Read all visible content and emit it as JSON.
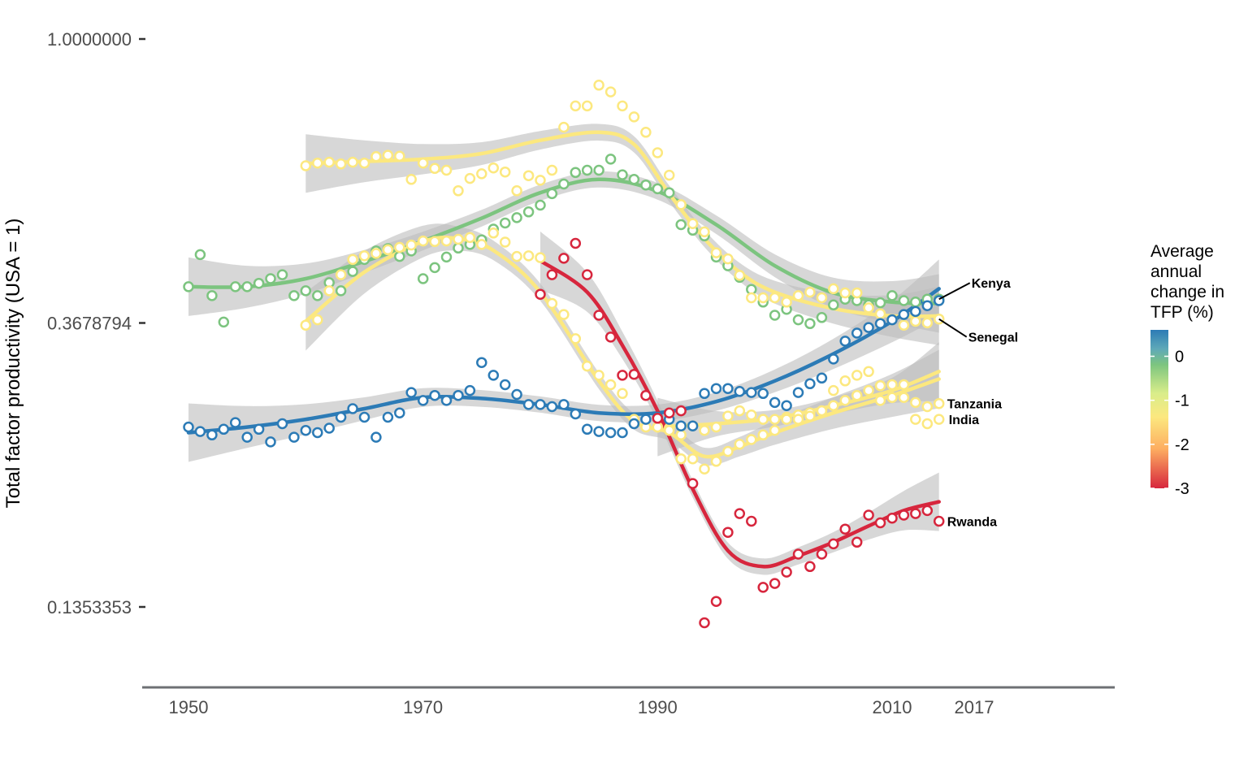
{
  "chart_data": {
    "type": "scatter",
    "title": "",
    "xlabel": "",
    "ylabel": "Total factor productivity (USA = 1)",
    "x_ticks": [
      "1950",
      "1970",
      "1990",
      "2010",
      "2017"
    ],
    "x_tick_values": [
      1950,
      1970,
      1990,
      2010,
      2017
    ],
    "y_ticks": [
      "1.0000000",
      "0.3678794",
      "0.1353353"
    ],
    "y_tick_values": [
      1.0,
      0.3678794,
      0.1353353
    ],
    "y_scale": "log",
    "xlim": [
      1946,
      2028
    ],
    "ylim": [
      0.1076,
      1.0
    ],
    "grid": false,
    "legend": {
      "title": [
        "Average",
        "annual",
        "change in",
        "TFP (%)"
      ],
      "placement": "right",
      "ticks": [
        "0",
        "-1",
        "-2",
        "-3"
      ],
      "tick_values": [
        0,
        -1,
        -2,
        -3
      ],
      "range": [
        0.6,
        -3.0
      ],
      "colors": [
        "#2c7bb6",
        "#abd9e9",
        "#7dc57f",
        "#ffffbf",
        "#fee090",
        "#fdae61",
        "#d7191c"
      ]
    },
    "series": [
      {
        "name": "Kenya",
        "color": "#7cc47f",
        "x": [
          1950,
          1951,
          1952,
          1953,
          1954,
          1955,
          1956,
          1957,
          1958,
          1959,
          1960,
          1961,
          1962,
          1963,
          1964,
          1965,
          1966,
          1967,
          1968,
          1969,
          1970,
          1971,
          1972,
          1973,
          1974,
          1975,
          1976,
          1977,
          1978,
          1979,
          1980,
          1981,
          1982,
          1983,
          1984,
          1985,
          1986,
          1987,
          1988,
          1989,
          1990,
          1991,
          1992,
          1993,
          1994,
          1995,
          1996,
          1997,
          1998,
          1999,
          2000,
          2001,
          2002,
          2003,
          2004,
          2005,
          2006,
          2007,
          2008,
          2009,
          2010,
          2011,
          2012,
          2013,
          2014
        ],
        "y": [
          0.418,
          0.468,
          0.405,
          0.369,
          0.418,
          0.418,
          0.423,
          0.43,
          0.436,
          0.405,
          0.412,
          0.405,
          0.424,
          0.412,
          0.441,
          0.46,
          0.474,
          0.478,
          0.465,
          0.474,
          0.43,
          0.447,
          0.464,
          0.479,
          0.485,
          0.493,
          0.512,
          0.523,
          0.533,
          0.544,
          0.557,
          0.58,
          0.6,
          0.625,
          0.63,
          0.63,
          0.655,
          0.62,
          0.61,
          0.598,
          0.59,
          0.582,
          0.52,
          0.51,
          0.5,
          0.464,
          0.45,
          0.432,
          0.414,
          0.396,
          0.378,
          0.386,
          0.372,
          0.367,
          0.375,
          0.392,
          0.4,
          0.398,
          0.392,
          0.395,
          0.405,
          0.398,
          0.396,
          0.4,
          0.4
        ],
        "trend_x": [
          1950,
          1955,
          1960,
          1965,
          1970,
          1975,
          1980,
          1985,
          1990,
          1995,
          2000,
          2005,
          2010,
          2014
        ],
        "trend_y": [
          0.418,
          0.418,
          0.43,
          0.457,
          0.491,
          0.532,
          0.582,
          0.61,
          0.585,
          0.52,
          0.45,
          0.409,
          0.396,
          0.394
        ]
      },
      {
        "name": "India",
        "color": "#fce87f",
        "x": [
          1960,
          1961,
          1962,
          1963,
          1964,
          1965,
          1966,
          1967,
          1968,
          1969,
          1970,
          1971,
          1972,
          1973,
          1974,
          1975,
          1976,
          1977,
          1978,
          1979,
          1980,
          1981,
          1982,
          1983,
          1984,
          1985,
          1986,
          1987,
          1988,
          1989,
          1990,
          1991,
          1992,
          1993,
          1994,
          1995,
          1996,
          1997,
          1998,
          1999,
          2000,
          2001,
          2002,
          2003,
          2004,
          2005,
          2006,
          2007,
          2008,
          2009,
          2010,
          2011,
          2012,
          2013,
          2014
        ],
        "y": [
          0.365,
          0.372,
          0.412,
          0.436,
          0.46,
          0.466,
          0.47,
          0.476,
          0.48,
          0.484,
          0.491,
          0.49,
          0.491,
          0.494,
          0.497,
          0.485,
          0.505,
          0.489,
          0.465,
          0.466,
          0.463,
          0.394,
          0.379,
          0.348,
          0.316,
          0.306,
          0.296,
          0.287,
          0.262,
          0.255,
          0.255,
          0.254,
          0.228,
          0.228,
          0.22,
          0.226,
          0.234,
          0.24,
          0.244,
          0.248,
          0.252,
          0.264,
          0.266,
          0.268,
          0.27,
          0.29,
          0.3,
          0.306,
          0.31,
          0.28,
          0.283,
          0.283,
          0.262,
          0.258,
          0.262
        ],
        "trend_x": [
          1960,
          1965,
          1970,
          1973,
          1976,
          1980,
          1985,
          1988,
          1991,
          1994,
          1997,
          2000,
          2005,
          2010,
          2014
        ],
        "trend_y": [
          0.37,
          0.44,
          0.49,
          0.495,
          0.475,
          0.41,
          0.3,
          0.26,
          0.25,
          0.23,
          0.238,
          0.25,
          0.268,
          0.285,
          0.302
        ]
      },
      {
        "name": "Senegal",
        "color": "#fce87f",
        "x": [
          1960,
          1961,
          1962,
          1963,
          1964,
          1965,
          1966,
          1967,
          1968,
          1969,
          1970,
          1971,
          1972,
          1973,
          1974,
          1975,
          1976,
          1977,
          1978,
          1979,
          1980,
          1981,
          1982,
          1983,
          1984,
          1985,
          1986,
          1987,
          1988,
          1989,
          1990,
          1991,
          1992,
          1993,
          1994,
          1995,
          1996,
          1997,
          1998,
          1999,
          2000,
          2001,
          2002,
          2003,
          2004,
          2005,
          2006,
          2007,
          2008,
          2009,
          2010,
          2011,
          2012,
          2013,
          2014
        ],
        "y": [
          0.64,
          0.646,
          0.648,
          0.644,
          0.648,
          0.646,
          0.661,
          0.664,
          0.662,
          0.61,
          0.646,
          0.634,
          0.63,
          0.586,
          0.612,
          0.622,
          0.635,
          0.626,
          0.586,
          0.618,
          0.608,
          0.63,
          0.733,
          0.79,
          0.79,
          0.85,
          0.83,
          0.79,
          0.76,
          0.72,
          0.67,
          0.619,
          0.558,
          0.522,
          0.507,
          0.471,
          0.461,
          0.435,
          0.402,
          0.402,
          0.402,
          0.396,
          0.405,
          0.41,
          0.402,
          0.415,
          0.409,
          0.409,
          0.388,
          0.38,
          0.372,
          0.365,
          0.37,
          0.368,
          0.373
        ],
        "trend_x": [
          1960,
          1965,
          1970,
          1975,
          1980,
          1985,
          1988,
          1991,
          1994,
          1997,
          2000,
          2005,
          2010,
          2014
        ],
        "trend_y": [
          0.645,
          0.65,
          0.655,
          0.668,
          0.7,
          0.72,
          0.69,
          0.58,
          0.495,
          0.44,
          0.41,
          0.387,
          0.377,
          0.377
        ]
      },
      {
        "name": "Tanzania",
        "color": "#fce87f",
        "x": [
          1990,
          1991,
          1992,
          1993,
          1994,
          1995,
          1996,
          1997,
          1998,
          1999,
          2000,
          2001,
          2002,
          2003,
          2004,
          2005,
          2006,
          2007,
          2008,
          2009,
          2010,
          2011,
          2012,
          2013,
          2014
        ],
        "y": [
          0.255,
          0.252,
          0.248,
          0.256,
          0.252,
          0.255,
          0.265,
          0.27,
          0.266,
          0.262,
          0.262,
          0.262,
          0.262,
          0.265,
          0.27,
          0.275,
          0.28,
          0.285,
          0.29,
          0.295,
          0.296,
          0.296,
          0.278,
          0.274,
          0.277
        ],
        "trend_x": [
          1990,
          1995,
          2000,
          2005,
          2010,
          2014
        ],
        "trend_y": [
          0.255,
          0.258,
          0.263,
          0.275,
          0.29,
          0.31
        ]
      },
      {
        "name": "Tanzania-blue",
        "color": "#2c7bb6",
        "x": [
          1950,
          1951,
          1952,
          1953,
          1954,
          1955,
          1956,
          1957,
          1958,
          1959,
          1960,
          1961,
          1962,
          1963,
          1964,
          1965,
          1966,
          1967,
          1968,
          1969,
          1970,
          1971,
          1972,
          1973,
          1974,
          1975,
          1976,
          1977,
          1978,
          1979,
          1980,
          1981,
          1982,
          1983,
          1984,
          1985,
          1986,
          1987,
          1988,
          1989,
          1990,
          1991,
          1992,
          1993,
          1994,
          1995,
          1996,
          1997,
          1998,
          1999,
          2000,
          2001,
          2002,
          2003,
          2004,
          2005,
          2006,
          2007,
          2008,
          2009,
          2010,
          2011,
          2012,
          2013,
          2014
        ],
        "y": [
          0.255,
          0.251,
          0.248,
          0.253,
          0.259,
          0.246,
          0.253,
          0.242,
          0.258,
          0.246,
          0.252,
          0.25,
          0.254,
          0.264,
          0.272,
          0.264,
          0.246,
          0.264,
          0.268,
          0.288,
          0.28,
          0.285,
          0.28,
          0.285,
          0.29,
          0.32,
          0.306,
          0.296,
          0.286,
          0.276,
          0.276,
          0.274,
          0.276,
          0.267,
          0.253,
          0.251,
          0.25,
          0.25,
          0.258,
          0.262,
          0.264,
          0.262,
          0.256,
          0.256,
          0.287,
          0.292,
          0.292,
          0.289,
          0.288,
          0.287,
          0.278,
          0.275,
          0.288,
          0.297,
          0.303,
          0.324,
          0.345,
          0.355,
          0.362,
          0.367,
          0.372,
          0.379,
          0.383,
          0.391,
          0.398
        ],
        "trend_x": [
          1950,
          1955,
          1960,
          1965,
          1970,
          1975,
          1980,
          1985,
          1990,
          1995,
          2000,
          2005,
          2010,
          2014
        ],
        "trend_y": [
          0.25,
          0.255,
          0.262,
          0.272,
          0.283,
          0.282,
          0.276,
          0.268,
          0.268,
          0.279,
          0.3,
          0.33,
          0.37,
          0.415
        ]
      },
      {
        "name": "Rwanda",
        "color": "#d7263d",
        "x": [
          1980,
          1981,
          1982,
          1983,
          1984,
          1985,
          1986,
          1987,
          1988,
          1989,
          1990,
          1991,
          1992,
          1993,
          1994,
          1995,
          1996,
          1997,
          1998,
          1999,
          2000,
          2001,
          2002,
          2003,
          2004,
          2005,
          2006,
          2007,
          2008,
          2009,
          2010,
          2011,
          2012,
          2013,
          2014
        ],
        "y": [
          0.407,
          0.436,
          0.462,
          0.487,
          0.436,
          0.378,
          0.35,
          0.306,
          0.307,
          0.285,
          0.263,
          0.268,
          0.27,
          0.209,
          0.128,
          0.138,
          0.176,
          0.188,
          0.183,
          0.145,
          0.147,
          0.153,
          0.163,
          0.156,
          0.163,
          0.169,
          0.178,
          0.17,
          0.187,
          0.182,
          0.185,
          0.187,
          0.188,
          0.19,
          0.183
        ],
        "trend_x": [
          1980,
          1984,
          1987,
          1990,
          1993,
          1996,
          1999,
          2002,
          2005,
          2008,
          2011,
          2014
        ],
        "trend_y": [
          0.458,
          0.41,
          0.34,
          0.27,
          0.205,
          0.165,
          0.156,
          0.162,
          0.17,
          0.18,
          0.19,
          0.196
        ]
      }
    ],
    "labels": [
      {
        "text": "Kenya",
        "series": "Kenya"
      },
      {
        "text": "India",
        "series": "India"
      },
      {
        "text": "Senegal",
        "series": "Senegal"
      },
      {
        "text": "Tanzania",
        "series": "Tanzania"
      },
      {
        "text": "Rwanda",
        "series": "Rwanda"
      }
    ]
  }
}
